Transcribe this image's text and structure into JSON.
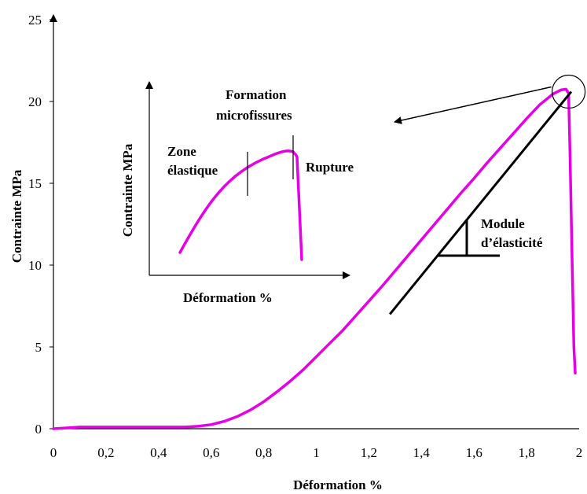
{
  "chart_data": {
    "type": "line",
    "title": "",
    "xlabel": "Déformation %",
    "ylabel": "Contrainte MPa",
    "xlim": [
      0,
      2
    ],
    "ylim": [
      0,
      25
    ],
    "xticks": [
      0,
      0.2,
      0.4,
      0.6,
      0.8,
      1,
      1.2,
      1.4,
      1.6,
      1.8,
      2
    ],
    "xtick_labels": [
      "0",
      "0,2",
      "0,4",
      "0,6",
      "0,8",
      "1",
      "1,2",
      "1,4",
      "1,6",
      "1,8",
      "2"
    ],
    "yticks": [
      0,
      5,
      10,
      15,
      20,
      25
    ],
    "ytick_labels": [
      "0",
      "5",
      "10",
      "15",
      "20",
      "25"
    ],
    "grid": false,
    "series": [
      {
        "color": "#e600e6",
        "x": [
          0,
          0.05,
          0.1,
          0.2,
          0.3,
          0.4,
          0.5,
          0.55,
          0.6,
          0.65,
          0.7,
          0.75,
          0.8,
          0.85,
          0.9,
          0.95,
          1.0,
          1.05,
          1.1,
          1.15,
          1.2,
          1.25,
          1.3,
          1.35,
          1.4,
          1.45,
          1.5,
          1.55,
          1.6,
          1.65,
          1.7,
          1.75,
          1.8,
          1.85,
          1.9,
          1.93,
          1.95,
          1.96,
          1.965,
          1.975,
          1.98,
          1.985
        ],
        "y": [
          0,
          0.05,
          0.1,
          0.1,
          0.1,
          0.1,
          0.1,
          0.15,
          0.25,
          0.45,
          0.75,
          1.15,
          1.65,
          2.25,
          2.9,
          3.6,
          4.4,
          5.2,
          6.0,
          6.9,
          7.8,
          8.7,
          9.65,
          10.6,
          11.55,
          12.5,
          13.45,
          14.4,
          15.3,
          16.25,
          17.15,
          18.05,
          18.95,
          19.8,
          20.45,
          20.7,
          20.75,
          20.5,
          17.0,
          9.0,
          5.0,
          3.4
        ]
      }
    ],
    "annotations": {
      "modulus_line": {
        "x": [
          1.28,
          1.97
        ],
        "y": [
          7.0,
          20.6
        ]
      },
      "modulus_label": "Module d’élasticité",
      "rupture_circle_center": {
        "x": 1.96,
        "y": 20.6
      },
      "inset": {
        "ylabel": "Contrainte MPa",
        "xlabel": "Déformation %",
        "zone_label": [
          "Zone",
          "élastique"
        ],
        "formation_label": [
          "Formation",
          "microfissures"
        ],
        "rupture_label": "Rupture"
      }
    }
  }
}
